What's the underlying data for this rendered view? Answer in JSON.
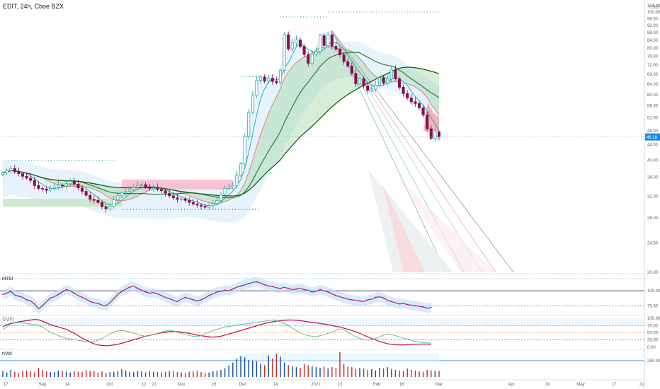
{
  "header": {
    "symbol_line": "EDIT, 24h, Cboe BZX"
  },
  "chart_data": [
    {
      "type": "candlestick",
      "title": "EDIT, 24h, Cboe BZX",
      "currency": "USD",
      "y_scale": "log",
      "ylim": [
        20,
        104
      ],
      "y_ticks": [
        "20.00",
        "24.00",
        "28.00",
        "32.00",
        "36.00",
        "40.00",
        "44.00",
        "48.00",
        "52.00",
        "56.00",
        "60.00",
        "64.00",
        "68.00",
        "72.00",
        "76.00",
        "80.00",
        "84.00",
        "88.00",
        "92.00",
        "96.00",
        "100.00",
        "104.00"
      ],
      "last_price_label": "46.18",
      "last_price_color": "#1e88e5",
      "x_ticks": [
        "17",
        "Sep",
        "14",
        "Oct",
        "12",
        "21",
        "Nov",
        "16",
        "Dec",
        "14",
        "2021",
        "13",
        "Feb",
        "16",
        "Mar",
        "Apr",
        "19",
        "May",
        "17",
        "Ju"
      ],
      "up_color": "#26a69a",
      "down_color": "#880e4f",
      "ma_colors": [
        "#26a69a",
        "#e57373",
        "#2e7d32",
        "#1b5e20"
      ],
      "close": [
        37,
        37.5,
        38,
        37.2,
        36.8,
        36.2,
        35.8,
        35.3,
        34.2,
        33.6,
        33.5,
        33.2,
        33.6,
        33.9,
        34.3,
        34.1,
        34.6,
        35.1,
        34.5,
        33.7,
        33,
        32.2,
        31.4,
        31.2,
        30.8,
        30,
        29.6,
        30.1,
        31.3,
        32.1,
        32.7,
        33,
        33.4,
        33.8,
        34.2,
        34.4,
        33.9,
        33.6,
        33.7,
        33.4,
        33.1,
        32.6,
        32.1,
        31.7,
        31.4,
        31.5,
        31.2,
        30.8,
        30.5,
        30.3,
        30.1,
        29.9,
        30.2,
        30.6,
        31.2,
        32.4,
        33.6,
        33.9,
        34.2,
        36.4,
        39.1,
        46.3,
        53.7,
        59.7,
        65.6,
        66.9,
        65.2,
        66.4,
        65.1,
        64.6,
        69.8,
        86.9,
        79.6,
        82.6,
        84.1,
        80.8,
        76.9,
        72.8,
        77.1,
        78.3,
        86.4,
        81.3,
        86.9,
        80.9,
        79.4,
        76.7,
        73.6,
        71.6,
        68.4,
        64.2,
        66.2,
        63.3,
        61.6,
        62.1,
        63.6,
        66.7,
        64.4,
        66.1,
        69.9,
        66.2,
        62.8,
        60.4,
        58.8,
        57.4,
        56.8,
        55.3,
        52.9,
        48.6,
        45.8,
        47.7,
        46.18
      ]
    },
    {
      "type": "line",
      "panel": "nRSI",
      "title": "nRSI",
      "y_ticks": [
        "75.00",
        "100.00"
      ],
      "ylim": [
        60,
        125
      ],
      "bands": [
        75,
        100
      ],
      "line_color": "#c2185b",
      "fill_color": "#bbdefb",
      "values": [
        94,
        96,
        99,
        93,
        91,
        89,
        85,
        83,
        78,
        70,
        75,
        82,
        88,
        90,
        94,
        98,
        102,
        100,
        96,
        92,
        89,
        86,
        82,
        80,
        79,
        76,
        75,
        80,
        87,
        94,
        99,
        103,
        106,
        108,
        104,
        101,
        98,
        96,
        97,
        95,
        92,
        89,
        87,
        84,
        82,
        86,
        89,
        87,
        85,
        83,
        85,
        88,
        92,
        95,
        98,
        99,
        101,
        100,
        103,
        106,
        108,
        110,
        112,
        114,
        115,
        113,
        110,
        108,
        107,
        105,
        104,
        106,
        104,
        102,
        103,
        104,
        102,
        101,
        98,
        99,
        102,
        100,
        98,
        95,
        92,
        90,
        88,
        86,
        85,
        84,
        83,
        82,
        85,
        86,
        89,
        90,
        88,
        84,
        82,
        80,
        78,
        79,
        77,
        76,
        75,
        74,
        73,
        71,
        72
      ]
    },
    {
      "type": "line",
      "panel": "SMFI",
      "title": "SMFI",
      "y_ticks": [
        "0.00",
        "25.00",
        "50.00",
        "75.00",
        "100.00"
      ],
      "ylim": [
        -5,
        105
      ],
      "bands": [
        25,
        50,
        75
      ],
      "series": [
        {
          "color": "#c2185b",
          "values": [
            70,
            78,
            82,
            85,
            88,
            90,
            92,
            94,
            96,
            95,
            90,
            84,
            78,
            74,
            70,
            66,
            62,
            55,
            48,
            40,
            32,
            25,
            18,
            12,
            8,
            6,
            5,
            6,
            8,
            10,
            14,
            18,
            22,
            26,
            30,
            34,
            38,
            41,
            44,
            47,
            50,
            52,
            54,
            55,
            54,
            52,
            50,
            48,
            45,
            42,
            40,
            38,
            36,
            35,
            36,
            38,
            42,
            46,
            50,
            54,
            58,
            62,
            66,
            70,
            74,
            78,
            82,
            85,
            88,
            90,
            92,
            93,
            94,
            94,
            93,
            92,
            90,
            88,
            86,
            84,
            82,
            80,
            78,
            75,
            72,
            70,
            66,
            62,
            58,
            54,
            48,
            42,
            36,
            30,
            25,
            20,
            16,
            12,
            10,
            9,
            8,
            8,
            9,
            10,
            10,
            11,
            11,
            11,
            10
          ]
        },
        {
          "color": "#66bb6a",
          "values": [
            60,
            70,
            80,
            84,
            86,
            84,
            82,
            80,
            78,
            76,
            70,
            60,
            52,
            46,
            40,
            35,
            30,
            28,
            26,
            24,
            22,
            20,
            18,
            20,
            24,
            30,
            38,
            46,
            52,
            56,
            58,
            56,
            52,
            48,
            44,
            40,
            38,
            40,
            44,
            48,
            52,
            56,
            58,
            56,
            52,
            48,
            44,
            40,
            38,
            36,
            40,
            46,
            52,
            58,
            62,
            66,
            70,
            72,
            74,
            76,
            78,
            80,
            82,
            84,
            86,
            88,
            90,
            92,
            94,
            92,
            88,
            82,
            74,
            66,
            58,
            50,
            44,
            40,
            38,
            36,
            40,
            44,
            48,
            52,
            58,
            64,
            60,
            52,
            44,
            36,
            30,
            26,
            24,
            26,
            30,
            36,
            42,
            46,
            44,
            40,
            36,
            32,
            28,
            24,
            20,
            18,
            16,
            15,
            14
          ]
        }
      ]
    },
    {
      "type": "bar",
      "panel": "nVol",
      "title": "nVol",
      "y_ticks": [
        "250.00"
      ],
      "ylim": [
        0,
        400
      ],
      "threshold": 250,
      "values": [
        90,
        70,
        110,
        80,
        60,
        95,
        100,
        85,
        70,
        140,
        110,
        90,
        75,
        80,
        100,
        95,
        85,
        70,
        90,
        80,
        75,
        110,
        95,
        90,
        70,
        85,
        60,
        75,
        80,
        90,
        120,
        100,
        80,
        75,
        90,
        85,
        70,
        95,
        80,
        75,
        70,
        80,
        90,
        85,
        75,
        70,
        60,
        80,
        85,
        90,
        75,
        60,
        70,
        85,
        95,
        110,
        130,
        180,
        220,
        280,
        320,
        300,
        260,
        250,
        240,
        200,
        180,
        330,
        280,
        350,
        310,
        220,
        180,
        160,
        150,
        140,
        200,
        180,
        170,
        150,
        140,
        160,
        130,
        150,
        140,
        380,
        200,
        160,
        150,
        120,
        140,
        130,
        110,
        120,
        100,
        140,
        130,
        150,
        120,
        110,
        100,
        90,
        130,
        110,
        100,
        90,
        80,
        110,
        100,
        95,
        90
      ]
    }
  ]
}
